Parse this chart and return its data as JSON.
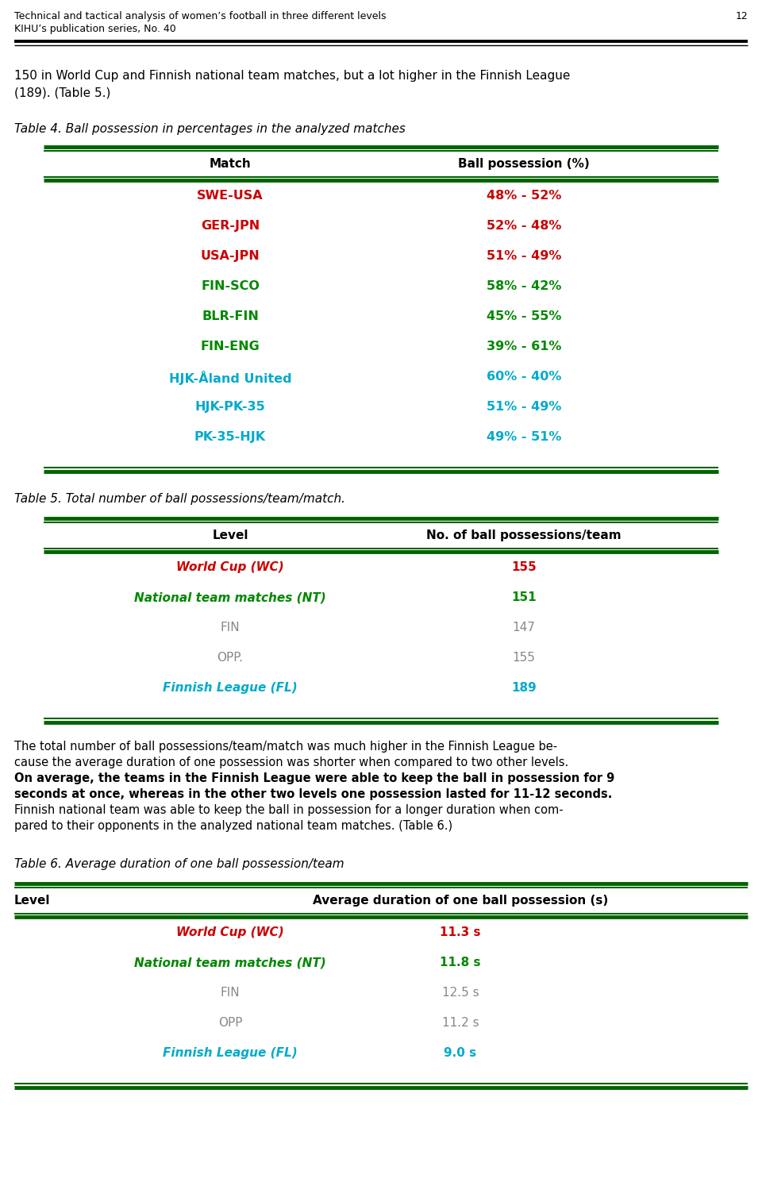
{
  "header_line1": "Technical and tactical analysis of women’s football in three different levels",
  "header_line2": "KIHU’s publication series, No. 40",
  "page_number": "12",
  "intro_line1": "150 in World Cup and Finnish national team matches, but a lot higher in the Finnish League",
  "intro_line2": "(189). (Table 5.)",
  "table4_title": "Table 4. Ball possession in percentages in the analyzed matches",
  "table4_col1": "Match",
  "table4_col2": "Ball possession (%)",
  "table4_rows": [
    {
      "match": "SWE-USA",
      "possession": "48% - 52%",
      "color": "#cc0000"
    },
    {
      "match": "GER-JPN",
      "possession": "52% - 48%",
      "color": "#cc0000"
    },
    {
      "match": "USA-JPN",
      "possession": "51% - 49%",
      "color": "#cc0000"
    },
    {
      "match": "FIN-SCO",
      "possession": "58% - 42%",
      "color": "#008800"
    },
    {
      "match": "BLR-FIN",
      "possession": "45% - 55%",
      "color": "#008800"
    },
    {
      "match": "FIN-ENG",
      "possession": "39% - 61%",
      "color": "#008800"
    },
    {
      "match": "HJK-Åland United",
      "possession": "60% - 40%",
      "color": "#00aacc"
    },
    {
      "match": "HJK-PK-35",
      "possession": "51% - 49%",
      "color": "#00aacc"
    },
    {
      "match": "PK-35-HJK",
      "possession": "49% - 51%",
      "color": "#00aacc"
    }
  ],
  "table5_title": "Table 5. Total number of ball possessions/team/match.",
  "table5_col1": "Level",
  "table5_col2": "No. of ball possessions/team",
  "table5_rows": [
    {
      "level": "World Cup (WC)",
      "value": "155",
      "color": "#cc0000",
      "bold": true
    },
    {
      "level": "National team matches (NT)",
      "value": "151",
      "color": "#008800",
      "bold": true
    },
    {
      "level": "FIN",
      "value": "147",
      "color": "#888888",
      "bold": false
    },
    {
      "level": "OPP.",
      "value": "155",
      "color": "#888888",
      "bold": false
    },
    {
      "level": "Finnish League (FL)",
      "value": "189",
      "color": "#00aacc",
      "bold": true
    }
  ],
  "body_text": [
    {
      "text": "The total number of ball possessions/team/match was much higher in the Finnish League be-",
      "bold": false
    },
    {
      "text": "cause the average duration of one possession was shorter when compared to two other levels.",
      "bold": false
    },
    {
      "text": "On average, the teams in the Finnish League were able to keep the ball in possession for 9",
      "bold": true
    },
    {
      "text": "seconds at once, whereas in the other two levels one possession lasted for 11-12 seconds.",
      "bold": true
    },
    {
      "text": "Finnish national team was able to keep the ball in possession for a longer duration when com-",
      "bold": false
    },
    {
      "text": "pared to their opponents in the analyzed national team matches. (Table 6.)",
      "bold": false
    }
  ],
  "table6_title": "Table 6. Average duration of one ball possession/team",
  "table6_col1": "Level",
  "table6_col2": "Average duration of one ball possession (s)",
  "table6_rows": [
    {
      "level": "World Cup (WC)",
      "value": "11.3 s",
      "color": "#cc0000",
      "bold": true
    },
    {
      "level": "National team matches (NT)",
      "value": "11.8 s",
      "color": "#008800",
      "bold": true
    },
    {
      "level": "FIN",
      "value": "12.5 s",
      "color": "#888888",
      "bold": false
    },
    {
      "level": "OPP",
      "value": "11.2 s",
      "color": "#888888",
      "bold": false
    },
    {
      "level": "Finnish League (FL)",
      "value": "9.0 s",
      "color": "#00aacc",
      "bold": true
    }
  ],
  "dark_green": "#006400",
  "bg_color": "#ffffff"
}
